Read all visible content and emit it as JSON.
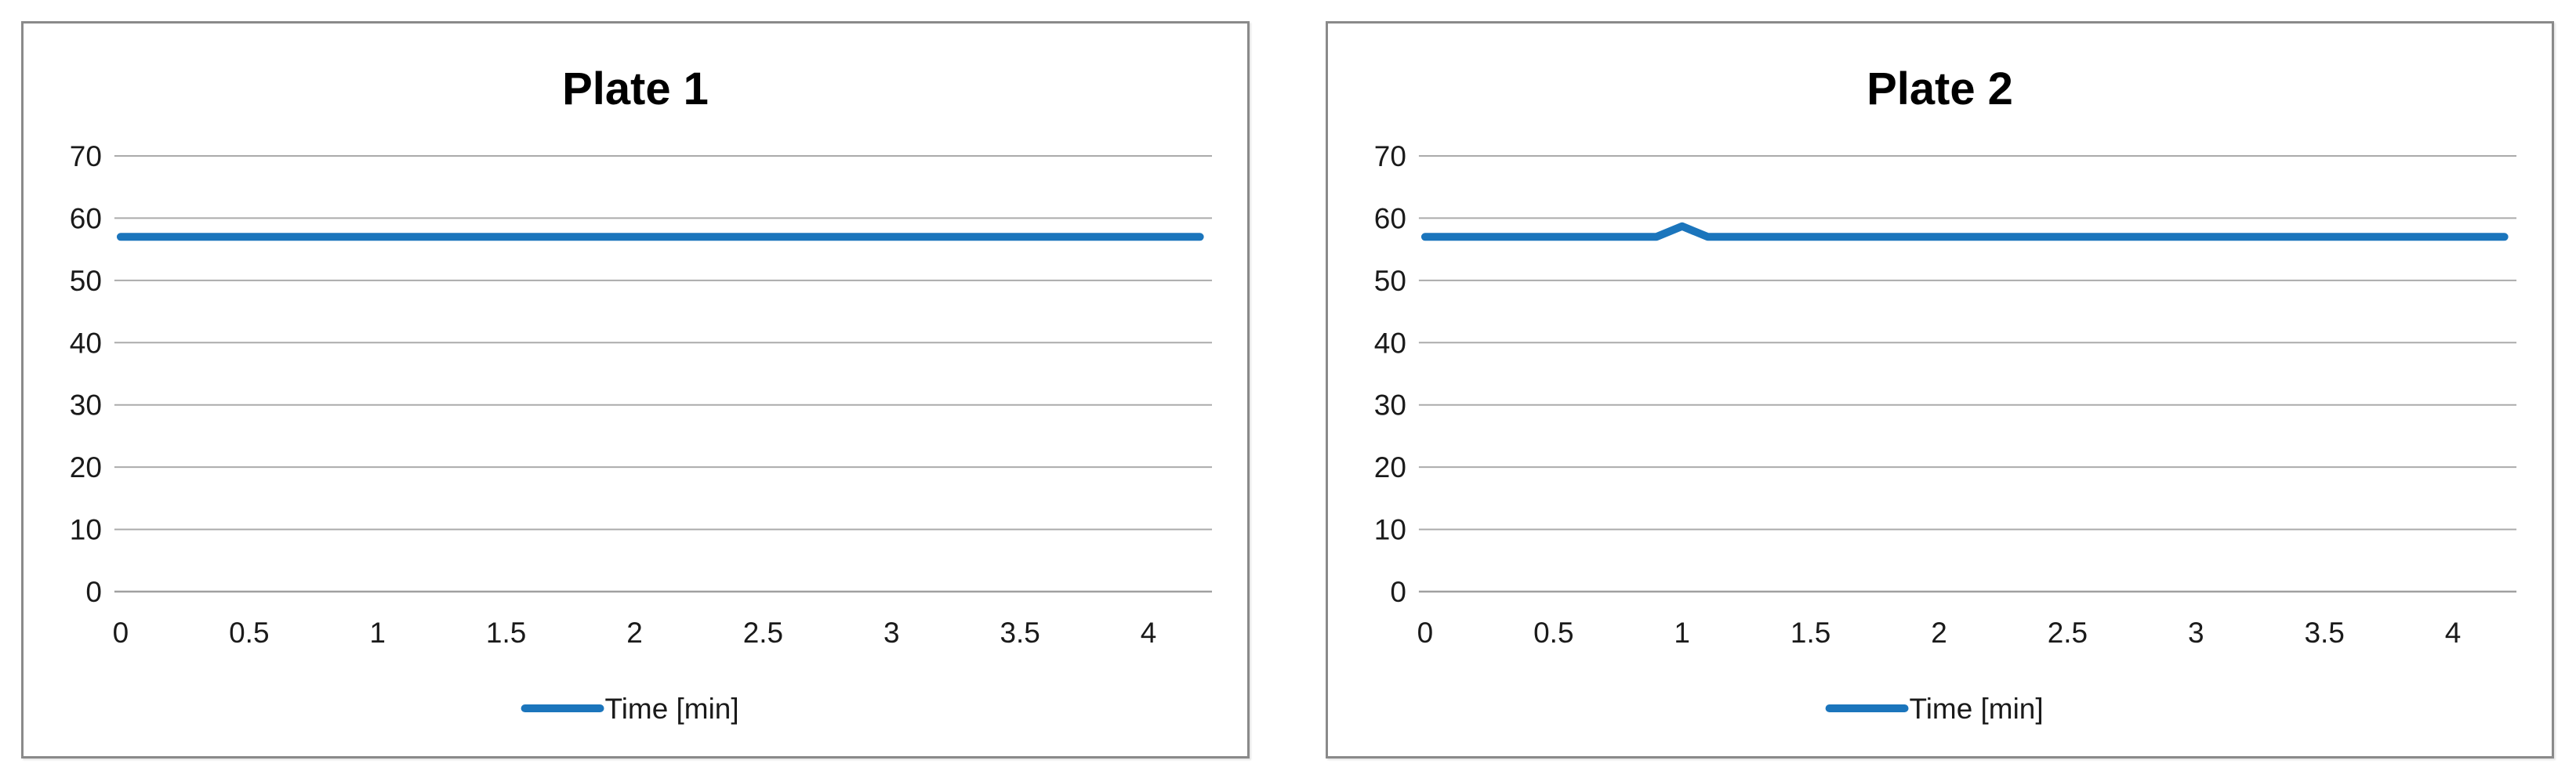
{
  "page": {
    "background": "#FFFFFF"
  },
  "style": {
    "series_blue": "#1B75BC",
    "grid_color": "#ABABAB",
    "axis_color": "#A0A0A0",
    "tick_color": "#1A1A1A",
    "title_color": "#000000",
    "panel_border_color": "#8A8A8A"
  },
  "chart_data": [
    {
      "type": "line",
      "title": "Plate 1",
      "xlabel": "",
      "ylabel": "",
      "grid": "horizontal",
      "legend_position": "bottom-center",
      "xlim": [
        0,
        4.25
      ],
      "ylim": [
        0,
        70
      ],
      "x_ticks": [
        {
          "v": 0,
          "label": "0"
        },
        {
          "v": 0.5,
          "label": "0.5"
        },
        {
          "v": 1,
          "label": "1"
        },
        {
          "v": 1.5,
          "label": "1.5"
        },
        {
          "v": 2,
          "label": "2"
        },
        {
          "v": 2.5,
          "label": "2.5"
        },
        {
          "v": 3,
          "label": "3"
        },
        {
          "v": 3.5,
          "label": "3.5"
        },
        {
          "v": 4,
          "label": "4"
        }
      ],
      "y_ticks": [
        {
          "v": 0,
          "label": "0"
        },
        {
          "v": 10,
          "label": "10"
        },
        {
          "v": 20,
          "label": "20"
        },
        {
          "v": 30,
          "label": "30"
        },
        {
          "v": 40,
          "label": "40"
        },
        {
          "v": 50,
          "label": "50"
        },
        {
          "v": 60,
          "label": "60"
        },
        {
          "v": 70,
          "label": "70"
        }
      ],
      "series": [
        {
          "name": "Time [min]",
          "color": "#1B75BC",
          "points": [
            [
              0,
              57
            ],
            [
              4.2,
              57
            ]
          ]
        }
      ]
    },
    {
      "type": "line",
      "title": "Plate 2",
      "xlabel": "",
      "ylabel": "",
      "grid": "horizontal",
      "legend_position": "bottom-center",
      "xlim": [
        0,
        4.25
      ],
      "ylim": [
        0,
        70
      ],
      "x_ticks": [
        {
          "v": 0,
          "label": "0"
        },
        {
          "v": 0.5,
          "label": "0.5"
        },
        {
          "v": 1,
          "label": "1"
        },
        {
          "v": 1.5,
          "label": "1.5"
        },
        {
          "v": 2,
          "label": "2"
        },
        {
          "v": 2.5,
          "label": "2.5"
        },
        {
          "v": 3,
          "label": "3"
        },
        {
          "v": 3.5,
          "label": "3.5"
        },
        {
          "v": 4,
          "label": "4"
        }
      ],
      "y_ticks": [
        {
          "v": 0,
          "label": "0"
        },
        {
          "v": 10,
          "label": "10"
        },
        {
          "v": 20,
          "label": "20"
        },
        {
          "v": 30,
          "label": "30"
        },
        {
          "v": 40,
          "label": "40"
        },
        {
          "v": 50,
          "label": "50"
        },
        {
          "v": 60,
          "label": "60"
        },
        {
          "v": 70,
          "label": "70"
        }
      ],
      "series": [
        {
          "name": "Time [min]",
          "color": "#1B75BC",
          "points": [
            [
              0,
              57
            ],
            [
              0.9,
              57
            ],
            [
              1,
              58.7
            ],
            [
              1.1,
              57
            ],
            [
              4.2,
              57
            ]
          ]
        }
      ]
    }
  ]
}
